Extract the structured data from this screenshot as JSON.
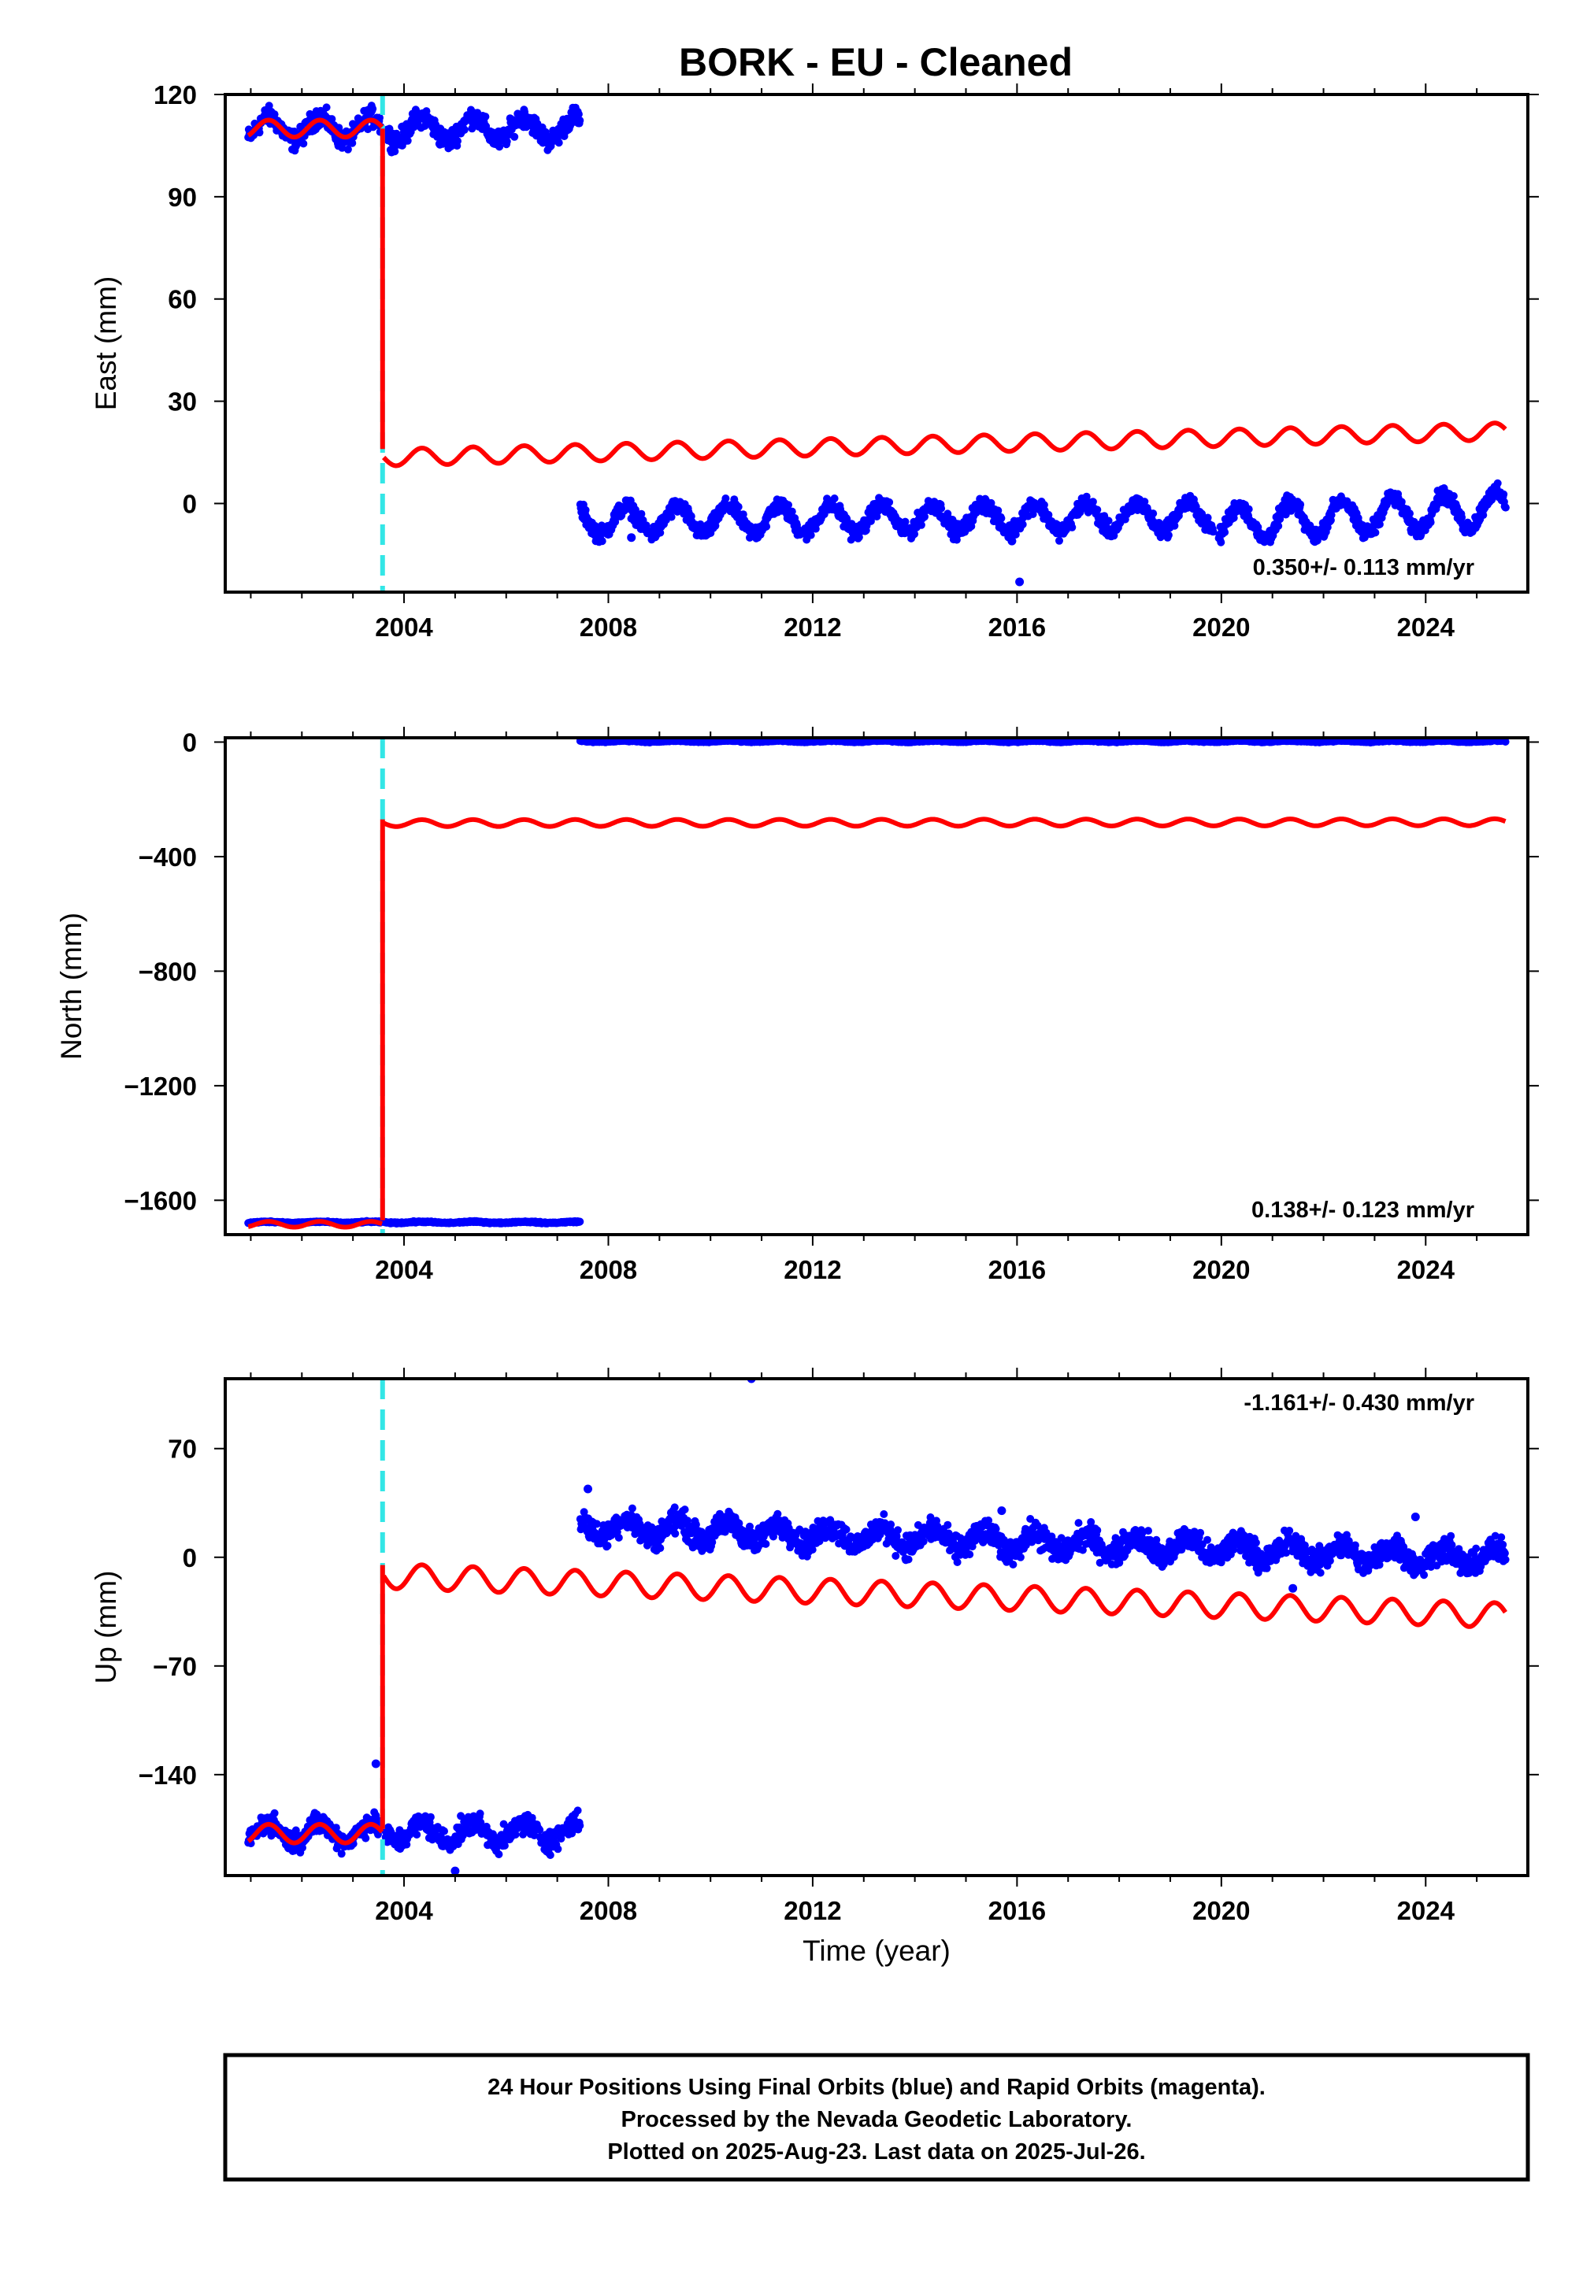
{
  "title": "BORK  - EU - Cleaned",
  "colors": {
    "data": "#0000ff",
    "model": "#ff0000",
    "break_line": "#33e6e6",
    "frame": "#000000"
  },
  "footer": {
    "line1": "24 Hour Positions Using Final Orbits (blue) and Rapid Orbits (magenta).",
    "line2": "Processed by the Nevada Geodetic Laboratory.",
    "line3": "Plotted on 2025-Aug-23. Last data on 2025-Jul-26."
  },
  "chart_data": [
    {
      "type": "scatter",
      "name": "east",
      "ylabel": "East (mm)",
      "xlabel": "",
      "rate_label": "0.350+/- 0.113 mm/yr",
      "rate_position": "bottom-right",
      "xlim": [
        2000.5,
        2026.0
      ],
      "ylim": [
        -26,
        120
      ],
      "x_ticks": [
        2004,
        2008,
        2012,
        2016,
        2020,
        2024
      ],
      "y_ticks": [
        0,
        30,
        60,
        90,
        120
      ],
      "break_epoch": 2003.58,
      "series": [
        {
          "name": "",
          "role": "data",
          "segments": [
            {
              "t0": 2000.95,
              "t1": 2003.55,
              "base": 110,
              "amp": 3.5,
              "noise": 2.5,
              "slope": 0
            },
            {
              "t0": 2003.62,
              "t1": 2007.45,
              "base": 110,
              "amp": 3.5,
              "noise": 2.5,
              "slope": 0
            },
            {
              "t0": 2007.45,
              "t1": 2019.85,
              "base": -5,
              "amp": 4,
              "noise": 2,
              "slope": 0.1
            },
            {
              "t0": 2019.95,
              "t1": 2025.57,
              "base": -6,
              "amp": 5,
              "noise": 2,
              "slope": 0.8
            }
          ],
          "outliers": [
            [
              2015.9,
              -11
            ],
            [
              2016.05,
              -23
            ],
            [
              2008.45,
              -10
            ]
          ]
        },
        {
          "name": "",
          "role": "model",
          "segments": [
            {
              "t0": 2000.95,
              "t1": 2003.57,
              "base": 110,
              "amp": 2.5,
              "slope": 0
            },
            {
              "t0": 2003.6,
              "t1": 2025.57,
              "base": 13.5,
              "amp": 2.5,
              "slope": 0.35
            }
          ],
          "jump": [
            2003.58,
            110,
            16
          ]
        }
      ]
    },
    {
      "type": "scatter",
      "name": "north",
      "ylabel": "North (mm)",
      "xlabel": "",
      "rate_label": "0.138+/- 0.123 mm/yr",
      "rate_position": "bottom-right",
      "xlim": [
        2000.5,
        2026.0
      ],
      "ylim": [
        -1720,
        15
      ],
      "x_ticks": [
        2004,
        2008,
        2012,
        2016,
        2020,
        2024
      ],
      "y_ticks": [
        0,
        -400,
        -800,
        -1200,
        -1600
      ],
      "break_epoch": 2003.58,
      "series": [
        {
          "name": "",
          "role": "data",
          "segments": [
            {
              "t0": 2000.95,
              "t1": 2003.55,
              "base": -1677,
              "amp": 2,
              "noise": 2,
              "slope": 0
            },
            {
              "t0": 2003.62,
              "t1": 2007.45,
              "base": -1677,
              "amp": 2,
              "noise": 2,
              "slope": 0
            },
            {
              "t0": 2007.45,
              "t1": 2025.57,
              "base": 3,
              "amp": 2,
              "noise": 2,
              "slope": 0
            }
          ],
          "outliers": []
        },
        {
          "name": "",
          "role": "model",
          "segments": [
            {
              "t0": 2000.95,
              "t1": 2003.57,
              "base": -1684,
              "amp": 10,
              "slope": 0
            },
            {
              "t0": 2003.6,
              "t1": 2025.57,
              "base": -283,
              "amp": 12,
              "slope": 0.14
            }
          ],
          "jump": [
            2003.58,
            -1670,
            -270
          ]
        }
      ]
    },
    {
      "type": "scatter",
      "name": "up",
      "ylabel": "Up (mm)",
      "xlabel": "Time (year)",
      "rate_label": "-1.161+/- 0.430 mm/yr",
      "rate_position": "top-right",
      "xlim": [
        2000.5,
        2026.0
      ],
      "ylim": [
        -205,
        115
      ],
      "x_ticks": [
        2004,
        2008,
        2012,
        2016,
        2020,
        2024
      ],
      "y_ticks": [
        70,
        0,
        -70,
        -140
      ],
      "break_epoch": 2003.58,
      "series": [
        {
          "name": "",
          "role": "data",
          "segments": [
            {
              "t0": 2000.95,
              "t1": 2003.55,
              "base": -177,
              "amp": 6,
              "noise": 6,
              "slope": 0
            },
            {
              "t0": 2003.62,
              "t1": 2007.45,
              "base": -177,
              "amp": 6,
              "noise": 6,
              "slope": 0
            },
            {
              "t0": 2007.45,
              "t1": 2025.57,
              "base": 20,
              "amp": 6,
              "noise": 7,
              "slope": -1.16
            }
          ],
          "outliers": [
            [
              2010.8,
              115
            ],
            [
              2007.6,
              44
            ],
            [
              2015.7,
              30
            ],
            [
              2023.8,
              26
            ],
            [
              2003.45,
              -133
            ],
            [
              2005.0,
              -202
            ],
            [
              2021.4,
              -20
            ]
          ]
        },
        {
          "name": "",
          "role": "model",
          "segments": [
            {
              "t0": 2000.95,
              "t1": 2003.57,
              "base": -178,
              "amp": 6,
              "slope": 0
            },
            {
              "t0": 2003.6,
              "t1": 2025.57,
              "base": -12,
              "amp": 8,
              "slope": -1.16
            }
          ],
          "jump": [
            2003.58,
            -175,
            -5
          ]
        }
      ]
    }
  ]
}
